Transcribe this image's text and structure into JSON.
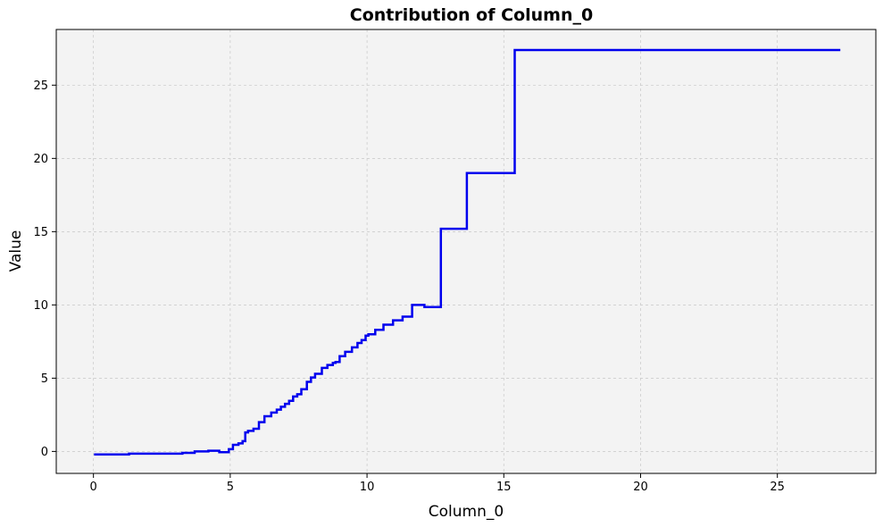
{
  "chart_data": {
    "type": "line",
    "step": true,
    "title": "Contribution of Column_0",
    "xlabel": "Column_0",
    "ylabel": "Value",
    "xlim": [
      -1.36,
      28.6
    ],
    "ylim": [
      -1.5,
      28.8
    ],
    "xticks": [
      0,
      5,
      10,
      15,
      20,
      25
    ],
    "yticks": [
      0,
      5,
      10,
      15,
      20,
      25
    ],
    "grid": true,
    "legend": "none",
    "colors": {
      "line": "#0000ee",
      "plot_background": "#f3f3f3",
      "grid": "#c8c8c8"
    },
    "series": [
      {
        "x": [
          0.02,
          1.3,
          3.25,
          3.7,
          4.2,
          4.6,
          4.95,
          5.1,
          5.3,
          5.45,
          5.55,
          5.65,
          5.85,
          6.05,
          6.25,
          6.5,
          6.7,
          6.85,
          7.0,
          7.15,
          7.3,
          7.45,
          7.6,
          7.8,
          7.95,
          8.1,
          8.35,
          8.55,
          8.75,
          8.85,
          9.0,
          9.2,
          9.45,
          9.65,
          9.8,
          9.95,
          10.05,
          10.3,
          10.6,
          10.95,
          11.3,
          11.65,
          12.1,
          12.7,
          13.65,
          15.4,
          27.3
        ],
        "y": [
          -0.2,
          -0.15,
          -0.1,
          0.0,
          0.05,
          -0.05,
          0.15,
          0.45,
          0.55,
          0.7,
          1.3,
          1.4,
          1.55,
          2.0,
          2.4,
          2.65,
          2.85,
          3.05,
          3.25,
          3.45,
          3.75,
          3.9,
          4.25,
          4.75,
          5.05,
          5.3,
          5.7,
          5.9,
          6.05,
          6.1,
          6.5,
          6.8,
          7.1,
          7.4,
          7.6,
          7.9,
          8.0,
          8.3,
          8.65,
          8.95,
          9.2,
          10.0,
          9.85,
          15.2,
          19.0,
          27.4,
          27.4
        ]
      }
    ]
  }
}
